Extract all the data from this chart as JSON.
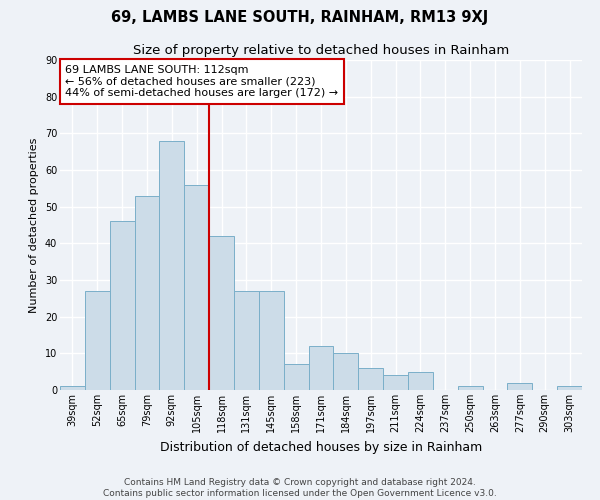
{
  "title": "69, LAMBS LANE SOUTH, RAINHAM, RM13 9XJ",
  "subtitle": "Size of property relative to detached houses in Rainham",
  "xlabel": "Distribution of detached houses by size in Rainham",
  "ylabel": "Number of detached properties",
  "categories": [
    "39sqm",
    "52sqm",
    "65sqm",
    "79sqm",
    "92sqm",
    "105sqm",
    "118sqm",
    "131sqm",
    "145sqm",
    "158sqm",
    "171sqm",
    "184sqm",
    "197sqm",
    "211sqm",
    "224sqm",
    "237sqm",
    "250sqm",
    "263sqm",
    "277sqm",
    "290sqm",
    "303sqm"
  ],
  "values": [
    1,
    27,
    46,
    53,
    68,
    56,
    42,
    27,
    27,
    7,
    12,
    10,
    6,
    4,
    5,
    0,
    1,
    0,
    2,
    0,
    1
  ],
  "bar_color": "#ccdce8",
  "bar_edge_color": "#7aafc9",
  "bar_width": 1.0,
  "ylim": [
    0,
    90
  ],
  "yticks": [
    0,
    10,
    20,
    30,
    40,
    50,
    60,
    70,
    80,
    90
  ],
  "vline_color": "#cc0000",
  "annotation_title": "69 LAMBS LANE SOUTH: 112sqm",
  "annotation_line1": "← 56% of detached houses are smaller (223)",
  "annotation_line2": "44% of semi-detached houses are larger (172) →",
  "annotation_box_edge": "#cc0000",
  "footer1": "Contains HM Land Registry data © Crown copyright and database right 2024.",
  "footer2": "Contains public sector information licensed under the Open Government Licence v3.0.",
  "background_color": "#eef2f7",
  "grid_color": "#ffffff",
  "title_fontsize": 10.5,
  "subtitle_fontsize": 9.5,
  "xlabel_fontsize": 9,
  "ylabel_fontsize": 8,
  "tick_fontsize": 7,
  "footer_fontsize": 6.5,
  "annotation_fontsize": 8
}
